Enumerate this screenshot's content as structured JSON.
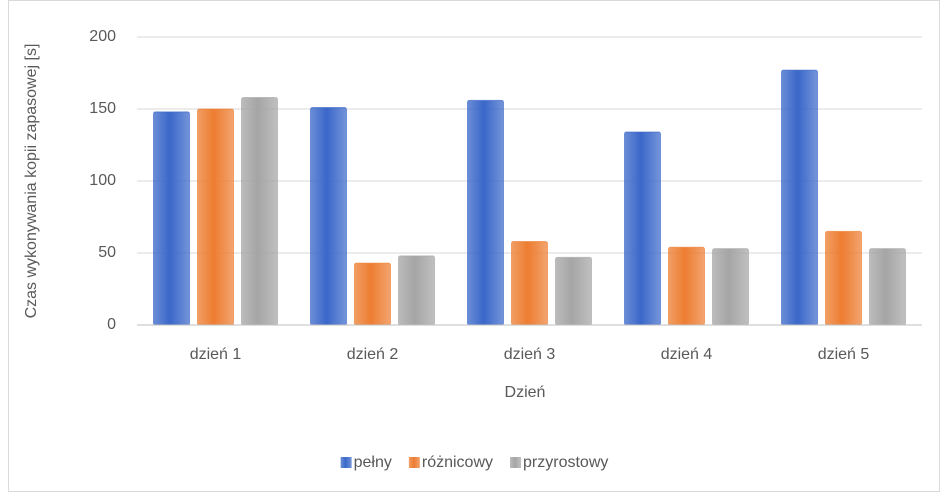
{
  "chart_data": {
    "type": "bar",
    "categories": [
      "dzień 1",
      "dzień 2",
      "dzień 3",
      "dzień 4",
      "dzień 5"
    ],
    "series": [
      {
        "name": "pełny",
        "color": "#3a67c9",
        "values": [
          148,
          151,
          156,
          134,
          177
        ]
      },
      {
        "name": "różnicowy",
        "color": "#ed7d31",
        "values": [
          150,
          43,
          58,
          54,
          65
        ]
      },
      {
        "name": "przyrostowy",
        "color": "#a5a5a5",
        "values": [
          158,
          48,
          47,
          53,
          53
        ]
      }
    ],
    "xlabel": "Dzień",
    "ylabel": "Czas wykonywania kopii zapasowej [s]",
    "ylim": [
      0,
      200
    ],
    "yticks": [
      0,
      50,
      100,
      150,
      200
    ],
    "grid": true,
    "legend": "bottom"
  }
}
